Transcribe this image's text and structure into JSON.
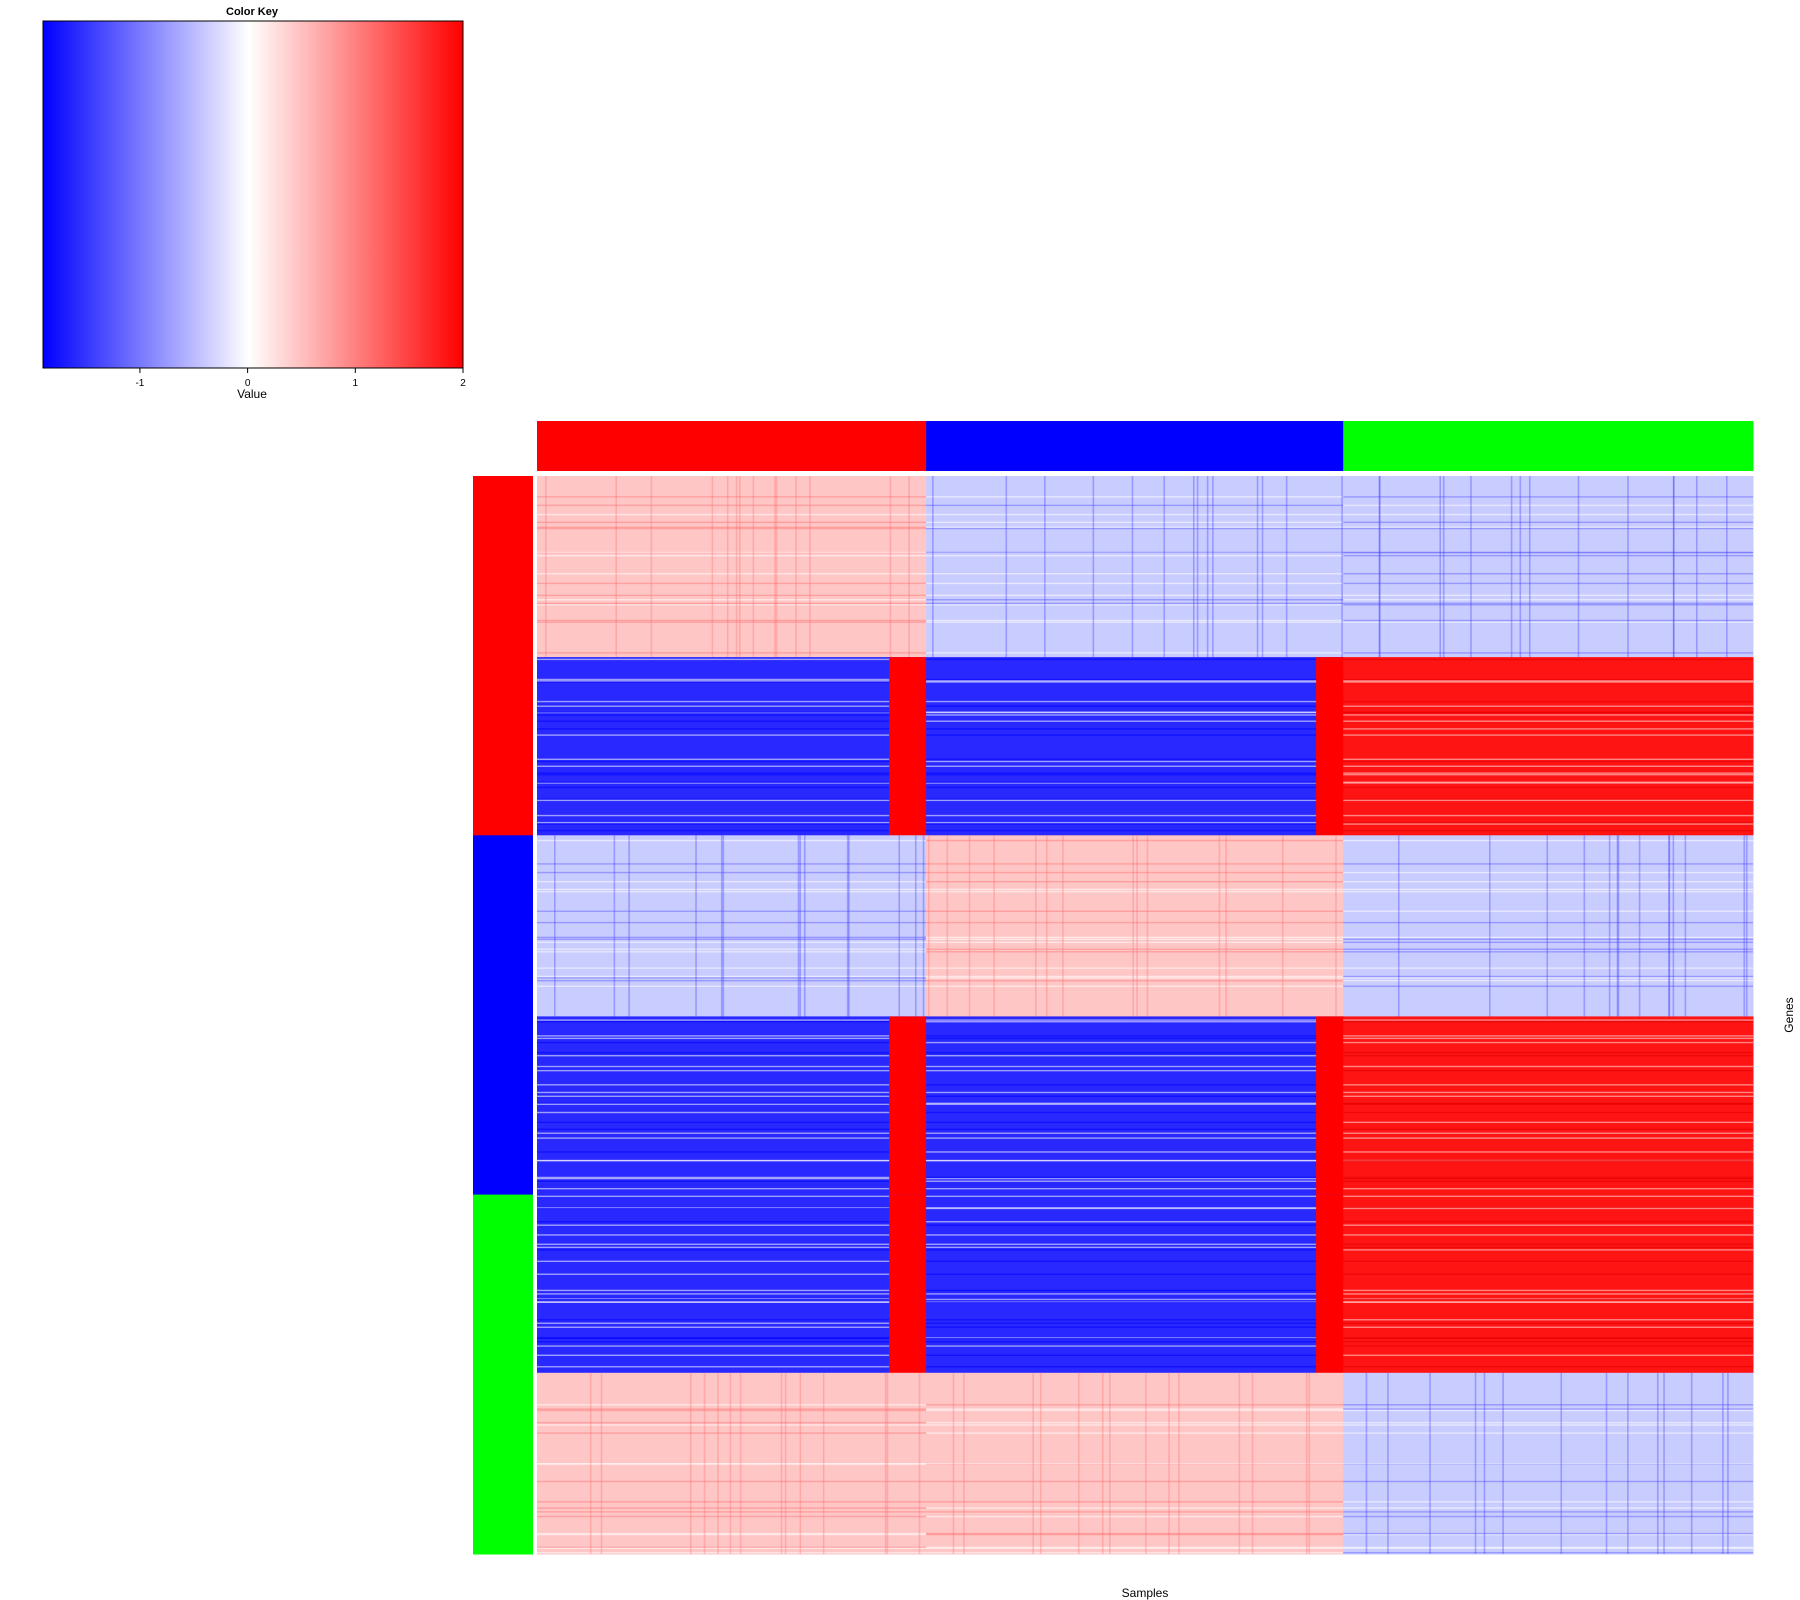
{
  "chart_data": {
    "type": "heatmap",
    "xlabel": "Samples",
    "ylabel": "Genes",
    "color_key": {
      "title": "Color Key",
      "label": "Value",
      "range": [
        -1.9,
        2.0
      ],
      "ticks": [
        -1,
        0,
        1,
        2
      ],
      "low_color": "#0000FF",
      "mid_color": "#FFFFFF",
      "high_color": "#FF0000"
    },
    "column_groups": [
      {
        "color": "#FF0000",
        "fraction": 0.32,
        "tail_fraction": 0.095,
        "tail_color": "#FF0000"
      },
      {
        "color": "#0000FF",
        "fraction": 0.343,
        "tail_fraction": 0.065,
        "tail_color": "#FF0000"
      },
      {
        "color": "#00FF00",
        "fraction": 0.337,
        "tail_fraction": 0.0,
        "tail_color": "#FF0000"
      }
    ],
    "row_groups": [
      {
        "color": "#FF0000",
        "fraction": 0.3333
      },
      {
        "color": "#0000FF",
        "fraction": 0.3333
      },
      {
        "color": "#00FF00",
        "fraction": 0.3334
      }
    ],
    "row_blocks": [
      {
        "fraction": 0.168,
        "pattern": [
          "red_light",
          "blue_light",
          "blue_light"
        ]
      },
      {
        "fraction": 0.1653,
        "pattern": [
          "blue_strong",
          "blue_strong",
          "red_strong"
        ]
      },
      {
        "fraction": 0.168,
        "pattern": [
          "blue_light",
          "red_light",
          "blue_light"
        ]
      },
      {
        "fraction": 0.1653,
        "pattern": [
          "blue_strong",
          "blue_strong",
          "red_strong"
        ]
      },
      {
        "fraction": 0.1653,
        "pattern": [
          "blue_strong",
          "blue_strong",
          "red_strong"
        ]
      },
      {
        "fraction": 0.1681,
        "pattern": [
          "red_light",
          "red_light",
          "blue_light"
        ]
      }
    ]
  }
}
